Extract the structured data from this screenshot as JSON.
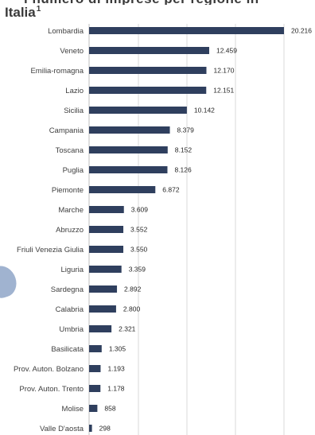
{
  "header": {
    "title": "Italia",
    "footnote_marker": "1"
  },
  "chart_data": {
    "type": "bar",
    "orientation": "horizontal",
    "title": "Italia",
    "xlabel": "",
    "ylabel": "",
    "categories": [
      "Lombardia",
      "Veneto",
      "Emilia-romagna",
      "Lazio",
      "Sicilia",
      "Campania",
      "Toscana",
      "Puglia",
      "Piemonte",
      "Marche",
      "Abruzzo",
      "Friuli Venezia Giulia",
      "Liguria",
      "Sardegna",
      "Calabria",
      "Umbria",
      "Basilicata",
      "Prov. Auton. Bolzano",
      "Prov. Auton. Trento",
      "Molise",
      "Valle D'aosta"
    ],
    "values": [
      20216,
      12459,
      12170,
      12151,
      10142,
      8379,
      8152,
      8126,
      6872,
      3609,
      3552,
      3550,
      3359,
      2892,
      2800,
      2321,
      1305,
      1193,
      1178,
      858,
      298
    ],
    "data_labels": [
      "20.216",
      "12.459",
      "12.170",
      "12.151",
      "10.142",
      "8.379",
      "8.152",
      "8.126",
      "6.872",
      "3.609",
      "3.552",
      "3.550",
      "3.359",
      "2.892",
      "2.800",
      "2.321",
      "1.305",
      "1.193",
      "1.178",
      "858",
      "298"
    ],
    "xlim": [
      0,
      20216
    ],
    "grid": true,
    "bar_color": "#2f3f5e",
    "grid_color": "#d9d9d9",
    "legend": "none"
  }
}
